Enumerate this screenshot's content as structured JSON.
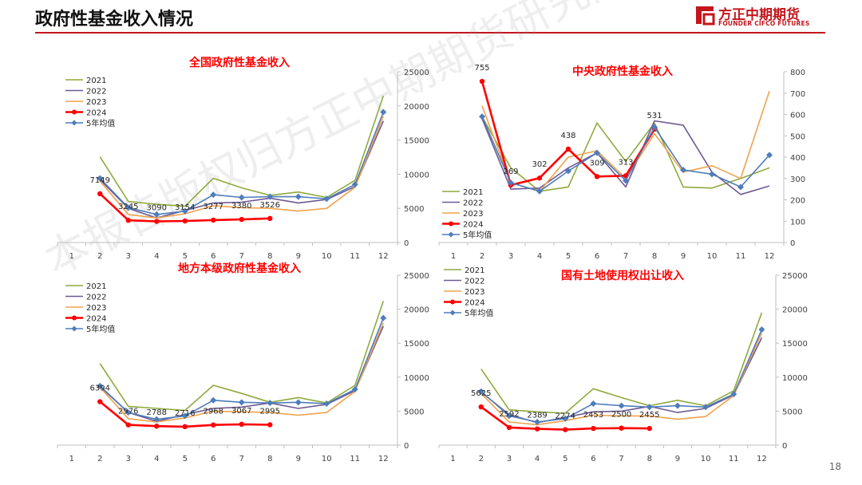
{
  "page": {
    "title": "政府性基金收入情况",
    "logo_cn": "方正中期期货",
    "logo_en": "FOUNDER CIFCO FUTURES",
    "page_number": "18",
    "watermark": "本报告版权归方正中期期货研究院所有"
  },
  "colors": {
    "s2021": "#8faa3c",
    "s2022": "#6d5a94",
    "s2023": "#f0a24e",
    "s2024": "#ff0000",
    "avg": "#4e7dbb",
    "title_red": "#ff0000",
    "brand_red": "#c4161c"
  },
  "chart_data": [
    {
      "id": "national",
      "type": "line",
      "title": "全国政府性基金收入",
      "x": [
        1,
        2,
        3,
        4,
        5,
        6,
        7,
        8,
        9,
        10,
        11,
        12
      ],
      "ylim": [
        0,
        25000
      ],
      "yticks": [
        0,
        5000,
        10000,
        15000,
        20000,
        25000
      ],
      "legend_position": "top-left",
      "series": [
        {
          "name": "2021",
          "color_key": "s2021",
          "values": [
            null,
            12550,
            6000,
            5600,
            5300,
            9400,
            8000,
            6900,
            7400,
            6600,
            9100,
            21500
          ]
        },
        {
          "name": "2022",
          "color_key": "s2022",
          "values": [
            null,
            9200,
            5000,
            3600,
            4700,
            5800,
            5900,
            6500,
            5800,
            6300,
            8200,
            17800
          ]
        },
        {
          "name": "2023",
          "color_key": "s2023",
          "values": [
            null,
            9000,
            4100,
            3600,
            4200,
            5400,
            5100,
            5000,
            4600,
            5000,
            8100,
            18500
          ]
        },
        {
          "name": "2024",
          "color_key": "s2024",
          "values": [
            null,
            7149,
            3245,
            3090,
            3154,
            3277,
            3380,
            3526,
            null,
            null,
            null,
            null
          ]
        },
        {
          "name": "5年均值",
          "color_key": "avg",
          "values": [
            null,
            9400,
            5100,
            4100,
            4600,
            7000,
            6600,
            6700,
            6700,
            6400,
            8500,
            19100
          ]
        }
      ],
      "data_labels": [
        {
          "x": 2,
          "text": "7149"
        },
        {
          "x": 3,
          "text": "3245"
        },
        {
          "x": 4,
          "text": "3090"
        },
        {
          "x": 5,
          "text": "3154"
        },
        {
          "x": 6,
          "text": "3277"
        },
        {
          "x": 7,
          "text": "3380"
        },
        {
          "x": 8,
          "text": "3526"
        }
      ]
    },
    {
      "id": "central",
      "type": "line",
      "title": "中央政府性基金收入",
      "x": [
        1,
        2,
        3,
        4,
        5,
        6,
        7,
        8,
        9,
        10,
        11,
        12
      ],
      "ylim": [
        0,
        800
      ],
      "yticks": [
        0,
        100,
        200,
        300,
        400,
        500,
        600,
        700,
        800
      ],
      "legend_position": "bottom-left",
      "series": [
        {
          "name": "2021",
          "color_key": "s2021",
          "values": [
            null,
            590,
            350,
            240,
            260,
            560,
            380,
            560,
            260,
            255,
            300,
            350
          ]
        },
        {
          "name": "2022",
          "color_key": "s2022",
          "values": [
            null,
            580,
            250,
            255,
            350,
            420,
            260,
            570,
            550,
            330,
            225,
            265
          ]
        },
        {
          "name": "2023",
          "color_key": "s2023",
          "values": [
            null,
            640,
            280,
            240,
            400,
            430,
            300,
            510,
            330,
            360,
            300,
            710
          ]
        },
        {
          "name": "2024",
          "color_key": "s2024",
          "values": [
            null,
            755,
            269,
            302,
            438,
            309,
            313,
            531,
            null,
            null,
            null,
            null
          ]
        },
        {
          "name": "5年均值",
          "color_key": "avg",
          "values": [
            null,
            590,
            280,
            240,
            335,
            420,
            290,
            540,
            340,
            320,
            260,
            410
          ]
        }
      ],
      "data_labels": [
        {
          "x": 2,
          "text": "755"
        },
        {
          "x": 3,
          "text": "269"
        },
        {
          "x": 4,
          "text": "302"
        },
        {
          "x": 5,
          "text": "438"
        },
        {
          "x": 6,
          "text": "309"
        },
        {
          "x": 7,
          "text": "313"
        },
        {
          "x": 8,
          "text": "531"
        }
      ]
    },
    {
      "id": "local",
      "type": "line",
      "title": "地方本级政府性基金收入",
      "x": [
        1,
        2,
        3,
        4,
        5,
        6,
        7,
        8,
        9,
        10,
        11,
        12
      ],
      "ylim": [
        0,
        25000
      ],
      "yticks": [
        0,
        5000,
        10000,
        15000,
        20000,
        25000
      ],
      "legend_position": "top-left",
      "series": [
        {
          "name": "2021",
          "color_key": "s2021",
          "values": [
            null,
            12000,
            5700,
            5400,
            5100,
            8800,
            7600,
            6300,
            7000,
            6200,
            8800,
            21200
          ]
        },
        {
          "name": "2022",
          "color_key": "s2022",
          "values": [
            null,
            8600,
            4800,
            3500,
            4500,
            5400,
            5600,
            6200,
            5400,
            6000,
            8000,
            17500
          ]
        },
        {
          "name": "2023",
          "color_key": "s2023",
          "values": [
            null,
            8500,
            3900,
            3400,
            4000,
            5000,
            4900,
            4800,
            4400,
            4800,
            7900,
            18000
          ]
        },
        {
          "name": "2024",
          "color_key": "s2024",
          "values": [
            null,
            6394,
            2976,
            2788,
            2716,
            2968,
            3067,
            2995,
            null,
            null,
            null,
            null
          ]
        },
        {
          "name": "5年均值",
          "color_key": "avg",
          "values": [
            null,
            8700,
            4800,
            3800,
            4300,
            6600,
            6300,
            6200,
            6300,
            6100,
            8200,
            18700
          ]
        }
      ],
      "data_labels": [
        {
          "x": 2,
          "text": "6394"
        },
        {
          "x": 3,
          "text": "2976"
        },
        {
          "x": 4,
          "text": "2788"
        },
        {
          "x": 5,
          "text": "2716"
        },
        {
          "x": 6,
          "text": "2968"
        },
        {
          "x": 7,
          "text": "3067"
        },
        {
          "x": 8,
          "text": "2995"
        }
      ]
    },
    {
      "id": "land",
      "type": "line",
      "title": "国有土地使用权出让收入",
      "x": [
        1,
        2,
        3,
        4,
        5,
        6,
        7,
        8,
        9,
        10,
        11,
        12
      ],
      "ylim": [
        0,
        25000
      ],
      "yticks": [
        0,
        5000,
        10000,
        15000,
        20000,
        25000
      ],
      "legend_position": "top-left",
      "series": [
        {
          "name": "2021",
          "color_key": "s2021",
          "values": [
            null,
            11200,
            5200,
            4900,
            4700,
            8300,
            7000,
            5800,
            6600,
            5800,
            8000,
            19500
          ]
        },
        {
          "name": "2022",
          "color_key": "s2022",
          "values": [
            null,
            7800,
            4500,
            3300,
            4100,
            4900,
            5000,
            5700,
            4800,
            5400,
            7400,
            15800
          ]
        },
        {
          "name": "2023",
          "color_key": "s2023",
          "values": [
            null,
            7600,
            3400,
            3000,
            3600,
            4400,
            4300,
            4300,
            3800,
            4200,
            7300,
            16500
          ]
        },
        {
          "name": "2024",
          "color_key": "s2024",
          "values": [
            null,
            5625,
            2592,
            2389,
            2274,
            2453,
            2500,
            2455,
            null,
            null,
            null,
            null
          ]
        },
        {
          "name": "5年均值",
          "color_key": "avg",
          "values": [
            null,
            7900,
            4300,
            3400,
            3900,
            6100,
            5800,
            5600,
            5800,
            5600,
            7500,
            17000
          ]
        }
      ],
      "data_labels": [
        {
          "x": 2,
          "text": "5625"
        },
        {
          "x": 3,
          "text": "2592"
        },
        {
          "x": 4,
          "text": "2389"
        },
        {
          "x": 5,
          "text": "2274"
        },
        {
          "x": 6,
          "text": "2453"
        },
        {
          "x": 7,
          "text": "2500"
        },
        {
          "x": 8,
          "text": "2455"
        }
      ]
    }
  ]
}
